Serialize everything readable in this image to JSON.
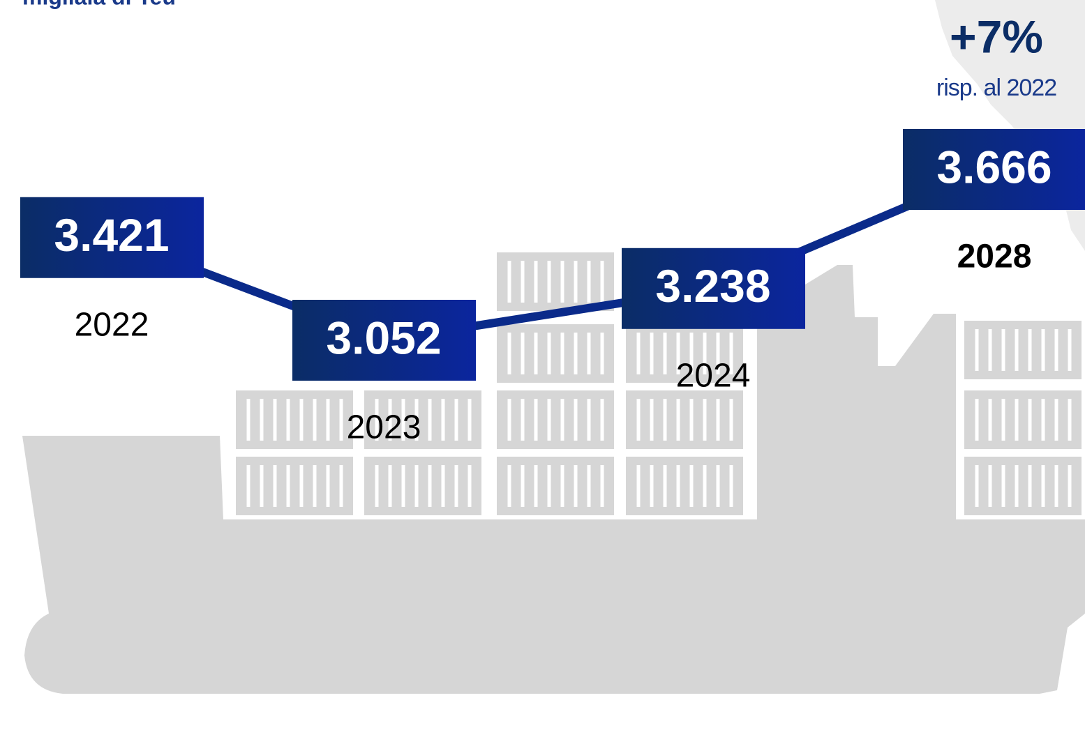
{
  "chart_data": {
    "type": "line",
    "subtitle": "migliaia di Teu",
    "categories": [
      "2022",
      "2023",
      "2024",
      "2028"
    ],
    "values": [
      3421,
      3052,
      3238,
      3666
    ],
    "value_labels": [
      "3.421",
      "3.052",
      "3.238",
      "3.666"
    ],
    "color": "#0a2a8a",
    "annotations": [
      "+7%",
      "risp. al 2022"
    ]
  }
}
